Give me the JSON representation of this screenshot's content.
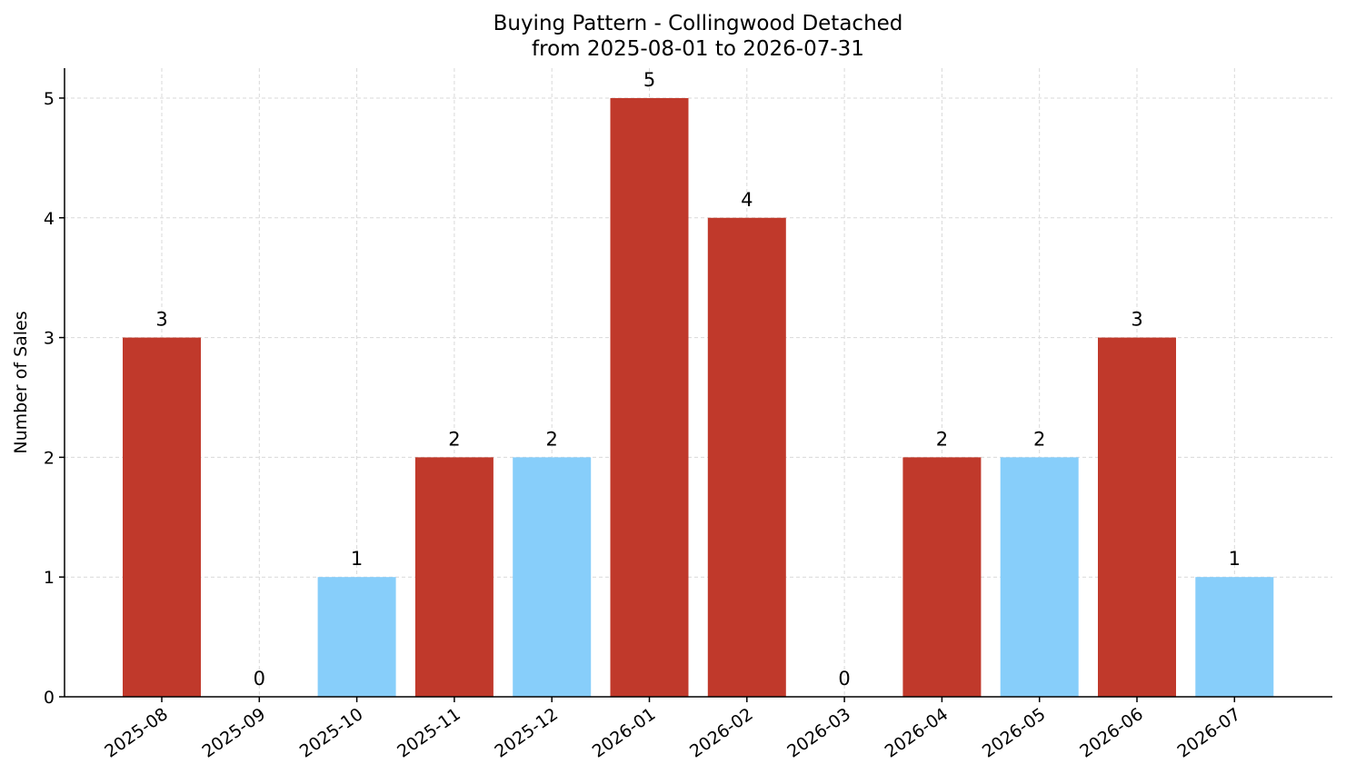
{
  "chart_data": {
    "type": "bar",
    "title": "Buying Pattern - Collingwood Detached",
    "subtitle": "from 2025-08-01 to 2026-07-31",
    "xlabel": "",
    "ylabel": "Number of Sales",
    "categories": [
      "2025-08",
      "2025-09",
      "2025-10",
      "2025-11",
      "2025-12",
      "2026-01",
      "2026-02",
      "2026-03",
      "2026-04",
      "2026-05",
      "2026-06",
      "2026-07"
    ],
    "values": [
      3,
      0,
      1,
      2,
      2,
      5,
      4,
      0,
      2,
      2,
      3,
      1
    ],
    "bar_colors": [
      "#c0392b",
      "#c0392b",
      "#87cefa",
      "#c0392b",
      "#87cefa",
      "#c0392b",
      "#c0392b",
      "#c0392b",
      "#c0392b",
      "#87cefa",
      "#c0392b",
      "#87cefa"
    ],
    "ylim": [
      0,
      5.25
    ],
    "yticks": [
      "0",
      "1",
      "2",
      "3",
      "4",
      "5"
    ],
    "grid": true,
    "legend": "none"
  }
}
